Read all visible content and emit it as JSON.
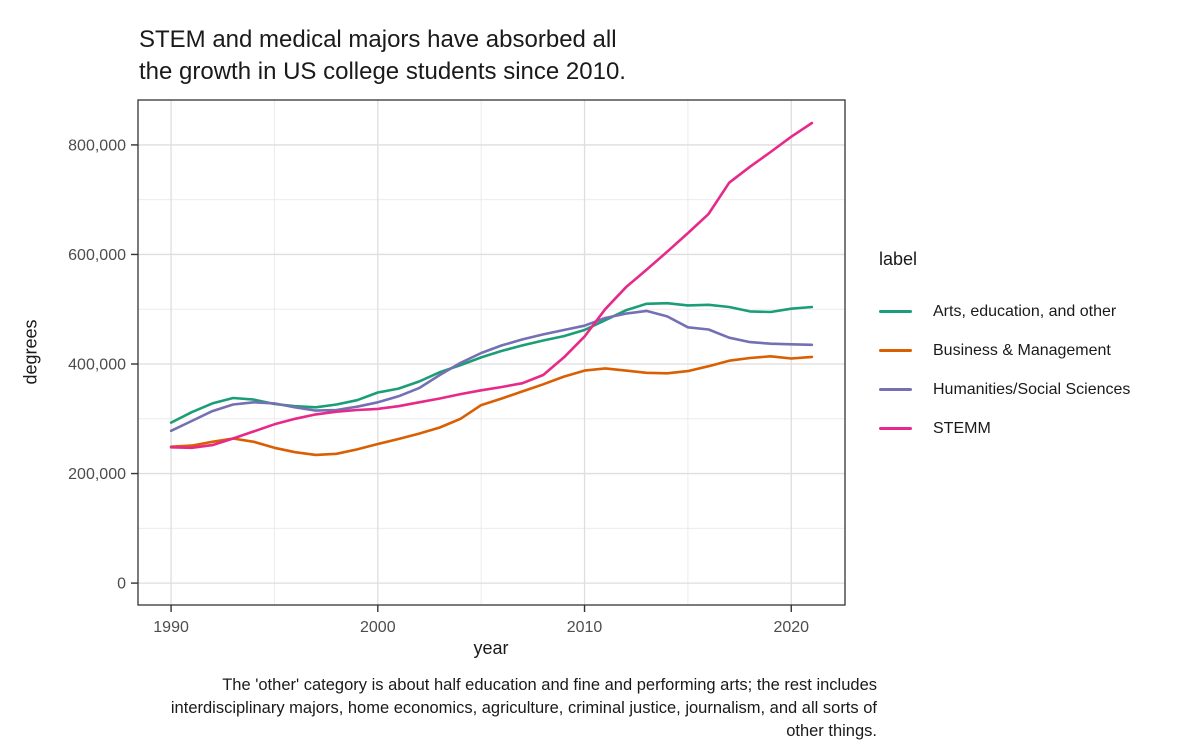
{
  "chart_data": {
    "type": "line",
    "title": "STEM and medical majors have absorbed all\nthe growth in US college students since 2010.",
    "xlabel": "year",
    "ylabel": "degrees",
    "caption": "The 'other' category is about half education and fine and performing arts; the rest includes interdisciplinary majors, home economics, agriculture, criminal justice, journalism, and all sorts of other things.",
    "legend_title": "label",
    "legend_position": "right",
    "grid": true,
    "panel_background": "#ffffff",
    "x": [
      1990,
      1991,
      1992,
      1993,
      1994,
      1995,
      1996,
      1997,
      1998,
      1999,
      2000,
      2001,
      2002,
      2003,
      2004,
      2005,
      2006,
      2007,
      2008,
      2009,
      2010,
      2011,
      2012,
      2013,
      2014,
      2015,
      2016,
      2017,
      2018,
      2019,
      2020,
      2021
    ],
    "series": [
      {
        "name": "Arts, education, and other",
        "color": "#1B9E77",
        "values": [
          293000,
          312000,
          328000,
          338000,
          335000,
          327000,
          323000,
          321000,
          326000,
          334000,
          348000,
          355000,
          368000,
          385000,
          398000,
          412000,
          424000,
          434000,
          443000,
          451000,
          462000,
          480000,
          498000,
          510000,
          511000,
          507000,
          508000,
          504000,
          496000,
          495000,
          501000,
          504000
        ]
      },
      {
        "name": "Business & Management",
        "color": "#D95F02",
        "values": [
          249000,
          251000,
          258000,
          264000,
          258000,
          247000,
          239000,
          234000,
          236000,
          244000,
          254000,
          263000,
          273000,
          284000,
          300000,
          325000,
          337000,
          350000,
          363000,
          377000,
          388000,
          392000,
          388000,
          384000,
          383000,
          387000,
          396000,
          406000,
          411000,
          414000,
          410000,
          413000
        ]
      },
      {
        "name": "Humanities/Social Sciences",
        "color": "#7570B3",
        "values": [
          278000,
          296000,
          314000,
          326000,
          330000,
          328000,
          321000,
          315000,
          316000,
          322000,
          330000,
          341000,
          356000,
          380000,
          402000,
          420000,
          434000,
          445000,
          454000,
          462000,
          470000,
          484000,
          492000,
          497000,
          487000,
          467000,
          463000,
          448000,
          440000,
          437000,
          436000,
          435000
        ]
      },
      {
        "name": "STEMM",
        "color": "#E7298A",
        "values": [
          248000,
          247000,
          252000,
          264000,
          277000,
          290000,
          300000,
          308000,
          313000,
          316000,
          318000,
          323000,
          330000,
          337000,
          345000,
          352000,
          358000,
          365000,
          380000,
          412000,
          450000,
          500000,
          540000,
          572000,
          605000,
          639000,
          674000,
          731000,
          760000,
          787000,
          815000,
          840000
        ]
      }
    ],
    "x_ticks": [
      1990,
      2000,
      2010,
      2020
    ],
    "x_tick_labels": [
      "1990",
      "2000",
      "2010",
      "2020"
    ],
    "x_minor_ticks": [
      1995,
      2005,
      2015
    ],
    "y_ticks": [
      0,
      200000,
      400000,
      600000,
      800000
    ],
    "y_tick_labels": [
      "0",
      "200,000",
      "400,000",
      "600,000",
      "800,000"
    ],
    "y_minor_ticks": [
      100000,
      300000,
      500000,
      700000
    ],
    "xlim": [
      1988.4,
      2022.6
    ],
    "ylim": [
      -40000,
      882000
    ],
    "colors": {
      "grid_major": "#dedede",
      "grid_minor": "#ebebeb",
      "panel_border": "#343434",
      "tick_mark": "#333333",
      "tick_label": "#4d4d4d",
      "text": "#1a1a1a"
    }
  }
}
